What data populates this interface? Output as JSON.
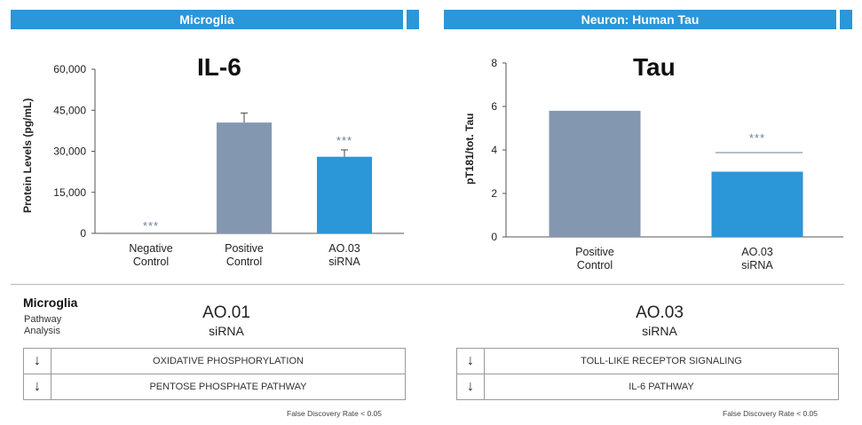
{
  "headers": {
    "left": "Microglia",
    "right": "Neuron: Human Tau"
  },
  "colors": {
    "header": "#2b96d8",
    "positive_control": "#8497b0",
    "treatment": "#2b96d8",
    "significance": "#6d7f99"
  },
  "chart_data": [
    {
      "type": "bar",
      "title": "IL-6",
      "ylabel": "Protein Levels (pg/mL)",
      "xlabel": "",
      "ylim": [
        0,
        60000
      ],
      "yticks": [
        "0",
        "15,000",
        "30,000",
        "45,000",
        "60,000"
      ],
      "categories": [
        [
          "Negative",
          "Control"
        ],
        [
          "Positive",
          "Control"
        ],
        [
          "AO.03",
          "siRNA"
        ]
      ],
      "values": [
        0,
        40500,
        28000
      ],
      "errors": [
        0,
        3500,
        2500
      ],
      "bar_colors": [
        "#2b96d8",
        "#8497b0",
        "#2b96d8"
      ],
      "annotations": [
        "***",
        "",
        "***"
      ],
      "grid": false
    },
    {
      "type": "bar",
      "title": "Tau",
      "ylabel": "pT181/tot. Tau",
      "xlabel": "",
      "ylim": [
        0,
        8
      ],
      "yticks": [
        "0",
        "2",
        "4",
        "6",
        "8"
      ],
      "categories": [
        [
          "Positive",
          "Control"
        ],
        [
          "AO.03",
          "siRNA"
        ]
      ],
      "values": [
        5.8,
        3.0
      ],
      "bar_colors": [
        "#8497b0",
        "#2b96d8"
      ],
      "annotations": [
        "",
        "***"
      ],
      "grid": false
    }
  ],
  "pathway": {
    "title": "Microglia",
    "subtitle_line1": "Pathway",
    "subtitle_line2": "Analysis",
    "left": {
      "head1": "AO.01",
      "head2": "siRNA",
      "rows": [
        {
          "arrow": "↓",
          "name": "OXIDATIVE PHOSPHORYLATION"
        },
        {
          "arrow": "↓",
          "name": "PENTOSE PHOSPHATE PATHWAY"
        }
      ],
      "footnote": "False Discovery Rate < 0.05"
    },
    "right": {
      "head1": "AO.03",
      "head2": "siRNA",
      "rows": [
        {
          "arrow": "↓",
          "name": "TOLL-LIKE RECEPTOR SIGNALING"
        },
        {
          "arrow": "↓",
          "name": "IL-6 PATHWAY"
        }
      ],
      "footnote": "False Discovery Rate < 0.05"
    }
  }
}
